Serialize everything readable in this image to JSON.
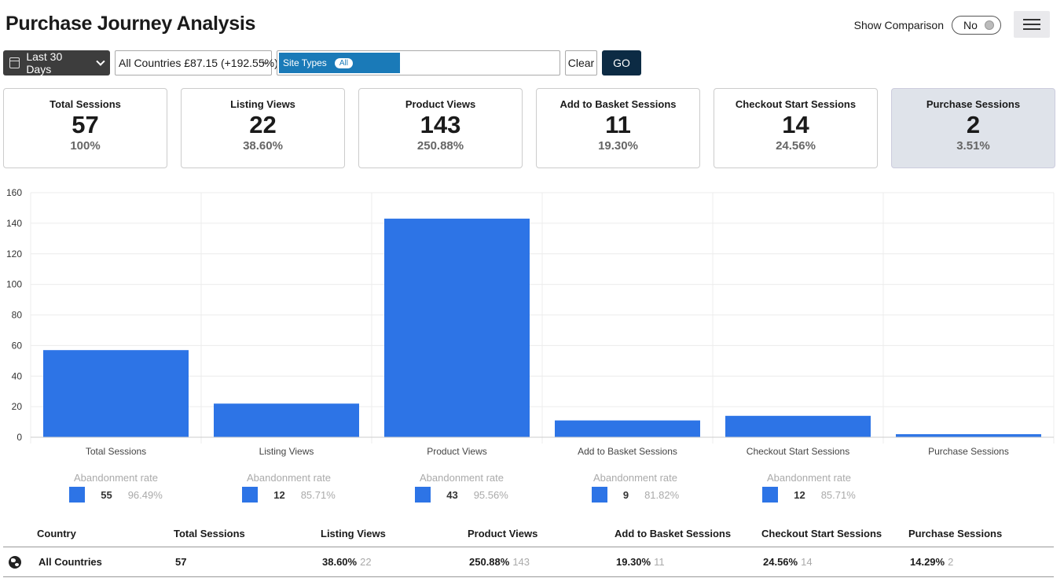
{
  "header": {
    "title": "Purchase Journey Analysis",
    "comparison_label": "Show Comparison",
    "comparison_value": "No",
    "menu_icon": "hamburger-icon"
  },
  "filters": {
    "date_range": "Last 30 Days",
    "country": "All Countries £87.15 (+192.55%)",
    "site_types_tag": "Site Types",
    "site_types_badge": "All",
    "clear_label": "Clear",
    "go_label": "GO"
  },
  "kpis": [
    {
      "label": "Total Sessions",
      "value": "57",
      "pct": "100%"
    },
    {
      "label": "Listing Views",
      "value": "22",
      "pct": "38.60%"
    },
    {
      "label": "Product Views",
      "value": "143",
      "pct": "250.88%"
    },
    {
      "label": "Add to Basket Sessions",
      "value": "11",
      "pct": "19.30%"
    },
    {
      "label": "Checkout Start Sessions",
      "value": "14",
      "pct": "24.56%"
    },
    {
      "label": "Purchase Sessions",
      "value": "2",
      "pct": "3.51%"
    }
  ],
  "chart_data": {
    "type": "bar",
    "categories": [
      "Total Sessions",
      "Listing Views",
      "Product Views",
      "Add to Basket Sessions",
      "Checkout Start Sessions",
      "Purchase Sessions"
    ],
    "values": [
      57,
      22,
      143,
      11,
      14,
      2
    ],
    "ylim": [
      0,
      160
    ],
    "yticks": [
      0,
      20,
      40,
      60,
      80,
      100,
      120,
      140,
      160
    ],
    "bar_color": "#2d74e6",
    "grid": true
  },
  "abandonment": {
    "title": "Abandonment rate",
    "items": [
      {
        "count": "55",
        "rate": "96.49%"
      },
      {
        "count": "12",
        "rate": "85.71%"
      },
      {
        "count": "43",
        "rate": "95.56%"
      },
      {
        "count": "9",
        "rate": "81.82%"
      },
      {
        "count": "12",
        "rate": "85.71%"
      }
    ]
  },
  "table": {
    "headers": [
      "Country",
      "Total Sessions",
      "Listing Views",
      "Product Views",
      "Add to Basket Sessions",
      "Checkout Start Sessions",
      "Purchase Sessions"
    ],
    "row": {
      "country": "All Countries",
      "total": "57",
      "listing_pct": "38.60%",
      "listing_count": "22",
      "product_pct": "250.88%",
      "product_count": "143",
      "basket_pct": "19.30%",
      "basket_count": "11",
      "checkout_pct": "24.56%",
      "checkout_count": "14",
      "purchase_pct": "14.29%",
      "purchase_count": "2"
    }
  }
}
